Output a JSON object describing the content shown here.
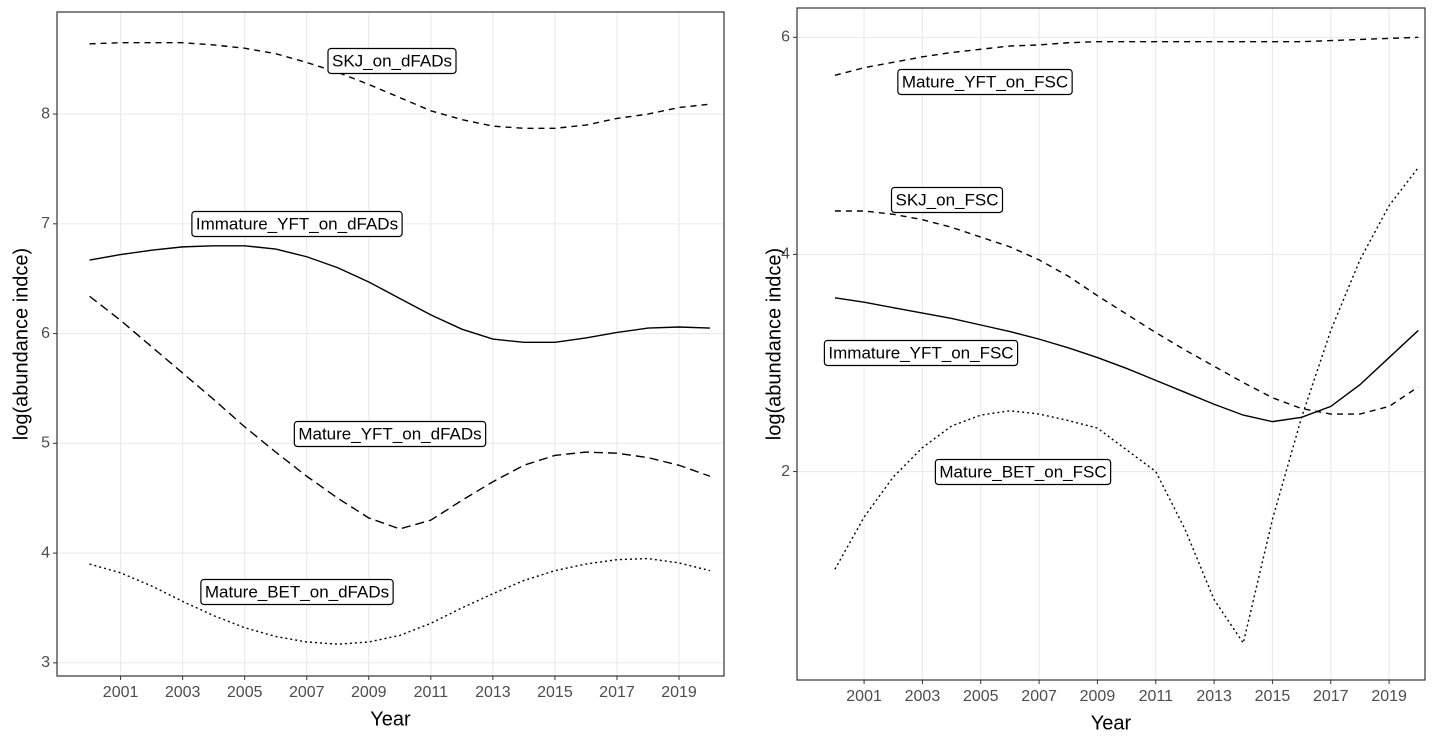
{
  "chart_data": [
    {
      "type": "line",
      "x_label": "Year",
      "y_label": "log(abundance indce)",
      "x": [
        2000,
        2001,
        2002,
        2003,
        2004,
        2005,
        2006,
        2007,
        2008,
        2009,
        2010,
        2011,
        2012,
        2013,
        2014,
        2015,
        2016,
        2017,
        2018,
        2019,
        2020
      ],
      "xlim": [
        1998.95,
        2020.45
      ],
      "xticks": [
        2001,
        2003,
        2005,
        2007,
        2009,
        2011,
        2013,
        2015,
        2017,
        2019
      ],
      "ylim": [
        2.88,
        8.93
      ],
      "yticks": [
        3,
        4,
        5,
        6,
        7,
        8
      ],
      "grid": true,
      "series": [
        {
          "name": "SKJ_on_dFADs",
          "color": "#000000",
          "line_style": "dashed",
          "values": [
            8.64,
            8.65,
            8.65,
            8.65,
            8.63,
            8.6,
            8.55,
            8.47,
            8.38,
            8.27,
            8.15,
            8.03,
            7.95,
            7.89,
            7.87,
            7.87,
            7.9,
            7.96,
            8.0,
            8.06,
            8.09
          ]
        },
        {
          "name": "Immature_YFT_on_dFADs",
          "color": "#000000",
          "line_style": "solid",
          "values": [
            6.67,
            6.72,
            6.76,
            6.79,
            6.8,
            6.8,
            6.77,
            6.7,
            6.6,
            6.47,
            6.32,
            6.17,
            6.04,
            5.95,
            5.92,
            5.92,
            5.96,
            6.01,
            6.05,
            6.06,
            6.05
          ]
        },
        {
          "name": "Mature_YFT_on_dFADs",
          "color": "#000000",
          "line_style": "longdash",
          "values": [
            6.34,
            6.12,
            5.88,
            5.64,
            5.4,
            5.15,
            4.92,
            4.7,
            4.5,
            4.32,
            4.22,
            4.3,
            4.48,
            4.65,
            4.8,
            4.89,
            4.92,
            4.91,
            4.87,
            4.8,
            4.7
          ]
        },
        {
          "name": "Mature_BET_on_dFADs",
          "color": "#000000",
          "line_style": "dotted",
          "values": [
            3.9,
            3.82,
            3.7,
            3.56,
            3.43,
            3.32,
            3.24,
            3.19,
            3.17,
            3.19,
            3.25,
            3.36,
            3.5,
            3.63,
            3.75,
            3.84,
            3.9,
            3.94,
            3.95,
            3.91,
            3.84
          ]
        }
      ]
    },
    {
      "type": "line",
      "x_label": "Year",
      "y_label": "log(abundance indce)",
      "x": [
        2000,
        2001,
        2002,
        2003,
        2004,
        2005,
        2006,
        2007,
        2008,
        2009,
        2010,
        2011,
        2012,
        2013,
        2014,
        2015,
        2016,
        2017,
        2018,
        2019,
        2020
      ],
      "xlim": [
        1998.7,
        2020.23
      ],
      "xticks": [
        2001,
        2003,
        2005,
        2007,
        2009,
        2011,
        2013,
        2015,
        2017,
        2019
      ],
      "ylim": [
        0.08,
        6.27
      ],
      "yticks": [
        2,
        4,
        6
      ],
      "grid": true,
      "series": [
        {
          "name": "Mature_YFT_on_FSC",
          "color": "#000000",
          "line_style": "dashed",
          "values": [
            5.65,
            5.72,
            5.77,
            5.82,
            5.86,
            5.89,
            5.92,
            5.93,
            5.95,
            5.96,
            5.96,
            5.96,
            5.96,
            5.96,
            5.96,
            5.96,
            5.96,
            5.97,
            5.98,
            5.99,
            6.0
          ]
        },
        {
          "name": "SKJ_on_FSC",
          "color": "#000000",
          "line_style": "dashed",
          "values": [
            4.4,
            4.4,
            4.37,
            4.32,
            4.25,
            4.16,
            4.07,
            3.95,
            3.8,
            3.62,
            3.45,
            3.28,
            3.12,
            2.97,
            2.82,
            2.68,
            2.58,
            2.53,
            2.53,
            2.6,
            2.78
          ]
        },
        {
          "name": "Immature_YFT_on_FSC",
          "color": "#000000",
          "line_style": "solid",
          "values": [
            3.6,
            3.56,
            3.51,
            3.46,
            3.41,
            3.35,
            3.29,
            3.22,
            3.14,
            3.05,
            2.95,
            2.84,
            2.73,
            2.62,
            2.52,
            2.46,
            2.5,
            2.6,
            2.8,
            3.05,
            3.3
          ]
        },
        {
          "name": "Mature_BET_on_FSC",
          "color": "#000000",
          "line_style": "dotted",
          "values": [
            1.1,
            1.58,
            1.95,
            2.22,
            2.42,
            2.52,
            2.56,
            2.53,
            2.47,
            2.4,
            2.2,
            2.0,
            1.47,
            0.82,
            0.42,
            1.56,
            2.5,
            3.3,
            3.95,
            4.45,
            4.8
          ]
        }
      ]
    }
  ]
}
